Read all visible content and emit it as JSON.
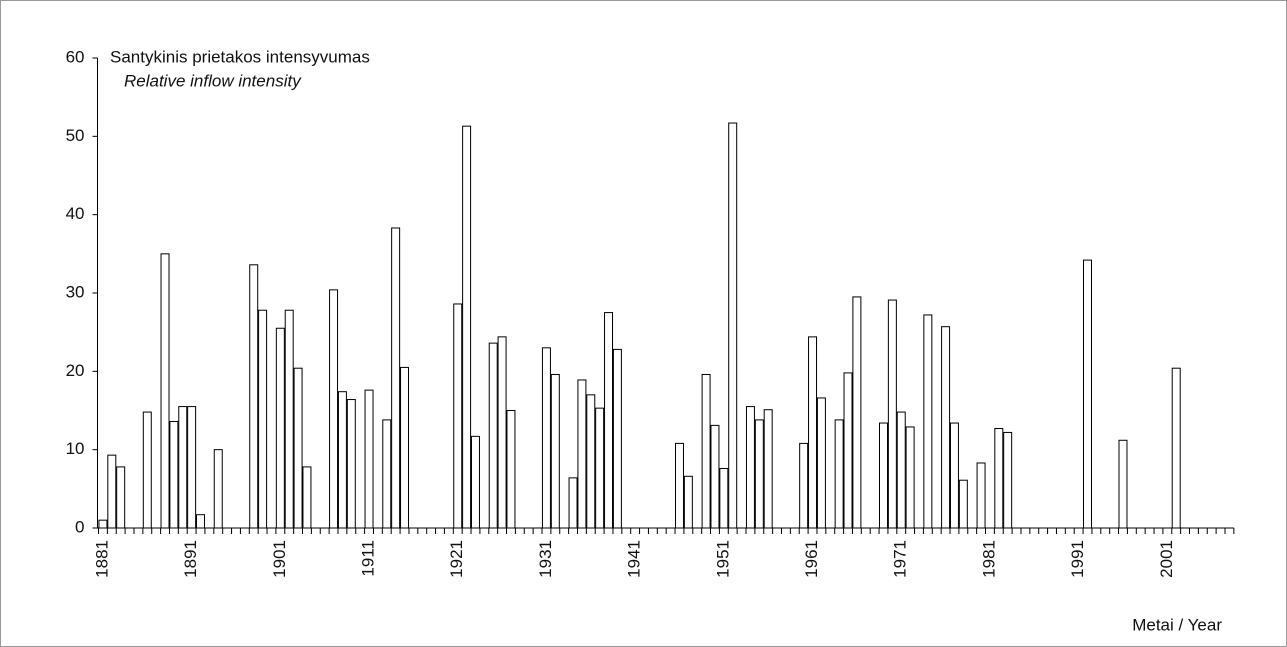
{
  "chart_data": {
    "type": "bar",
    "title": "Santykinis prietakos intensyvumas",
    "subtitle": "Relative inflow intensity",
    "x_label": "Metai / Year",
    "color": "#ffffff",
    "categories": [
      "1881",
      null,
      null,
      null,
      null,
      null,
      null,
      null,
      null,
      null,
      "1891",
      null,
      null,
      null,
      null,
      null,
      null,
      null,
      null,
      null,
      "1901",
      null,
      null,
      null,
      null,
      null,
      null,
      null,
      null,
      null,
      "1911",
      null,
      null,
      null,
      null,
      null,
      null,
      null,
      null,
      null,
      "1921",
      null,
      null,
      null,
      null,
      null,
      null,
      null,
      null,
      null,
      "1931",
      null,
      null,
      null,
      null,
      null,
      null,
      null,
      null,
      null,
      "1941",
      null,
      null,
      null,
      null,
      null,
      null,
      null,
      null,
      null,
      "1951",
      null,
      null,
      null,
      null,
      null,
      null,
      null,
      null,
      null,
      "1961",
      null,
      null,
      null,
      null,
      null,
      null,
      null,
      null,
      null,
      "1971",
      null,
      null,
      null,
      null,
      null,
      null,
      null,
      null,
      null,
      "1981",
      null,
      null,
      null,
      null,
      null,
      null,
      null,
      null,
      null,
      "1991",
      null,
      null,
      null,
      null,
      null,
      null,
      null,
      null,
      null,
      "2001",
      null,
      null,
      null,
      null,
      null,
      null,
      null
    ],
    "values": [
      1.0,
      9.3,
      7.8,
      null,
      null,
      14.8,
      null,
      35,
      13.6,
      15.5,
      15.5,
      1.7,
      null,
      10,
      null,
      null,
      null,
      33.6,
      27.8,
      null,
      25.5,
      27.8,
      20.4,
      7.8,
      null,
      null,
      30.4,
      17.4,
      16.4,
      null,
      17.6,
      null,
      13.8,
      38.3,
      20.5,
      null,
      null,
      null,
      null,
      null,
      28.6,
      51.3,
      11.7,
      null,
      23.6,
      24.4,
      15,
      null,
      null,
      null,
      23,
      19.6,
      null,
      6.4,
      18.9,
      17,
      15.3,
      27.5,
      22.8,
      null,
      null,
      null,
      null,
      null,
      null,
      10.8,
      6.6,
      null,
      19.6,
      13.1,
      7.6,
      51.7,
      null,
      15.5,
      13.8,
      15.1,
      null,
      null,
      null,
      10.8,
      24.4,
      16.6,
      null,
      13.8,
      19.8,
      29.5,
      null,
      null,
      13.4,
      29.1,
      14.8,
      12.9,
      null,
      27.2,
      null,
      25.7,
      13.4,
      6.1,
      null,
      8.3,
      null,
      12.7,
      12.2,
      null,
      null,
      null,
      null,
      null,
      null,
      null,
      null,
      34.2,
      null,
      null,
      null,
      11.2,
      null,
      null,
      null,
      null,
      null,
      20.4,
      null,
      null,
      null,
      null,
      null,
      null
    ],
    "ylim": [
      0,
      60
    ],
    "yticks": [
      0,
      10,
      20,
      30,
      40,
      50,
      60
    ],
    "grid": false
  }
}
